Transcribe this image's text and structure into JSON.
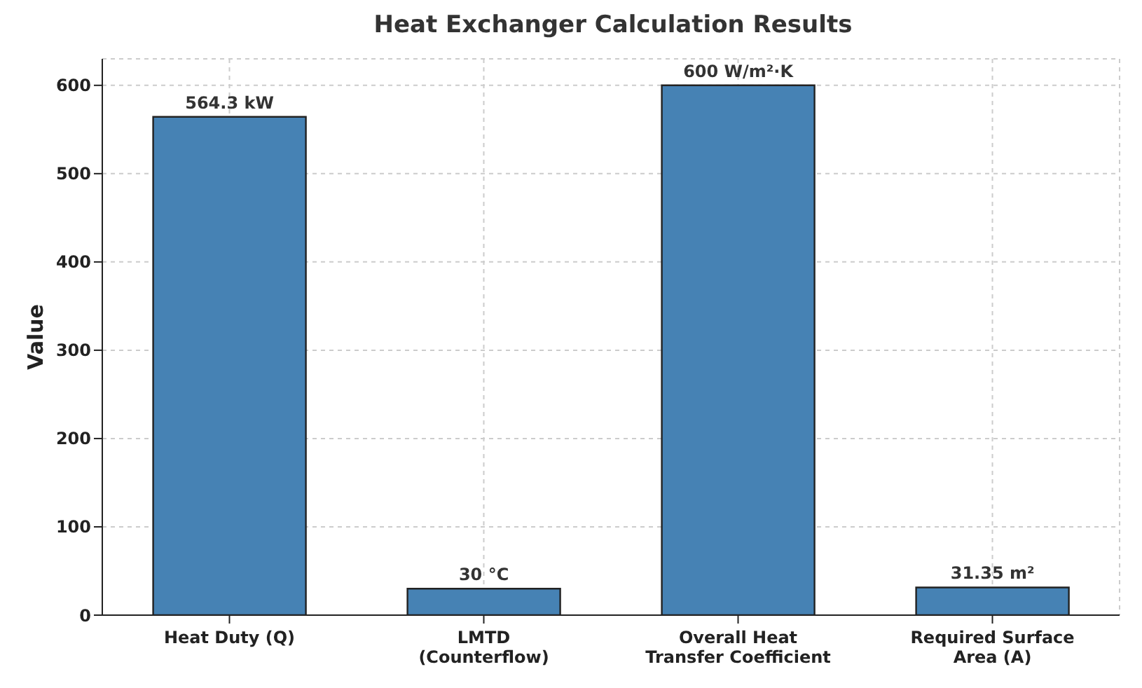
{
  "chart_data": {
    "type": "bar",
    "title": "Heat Exchanger Calculation Results",
    "ylabel": "Value",
    "categories": [
      "Heat Duty (Q)",
      "LMTD\n(Counterflow)",
      "Overall Heat\nTransfer Coefficient",
      "Required Surface\nArea (A)"
    ],
    "values": [
      564.3,
      30,
      600,
      31.35
    ],
    "value_labels": [
      "564.3 kW",
      "30 °C",
      "600 W/m²·K",
      "31.35 m²"
    ],
    "color": "#4682b4",
    "ylim": [
      0,
      630
    ],
    "yticks": [
      0,
      100,
      200,
      300,
      400,
      500,
      600
    ],
    "grid": true
  }
}
